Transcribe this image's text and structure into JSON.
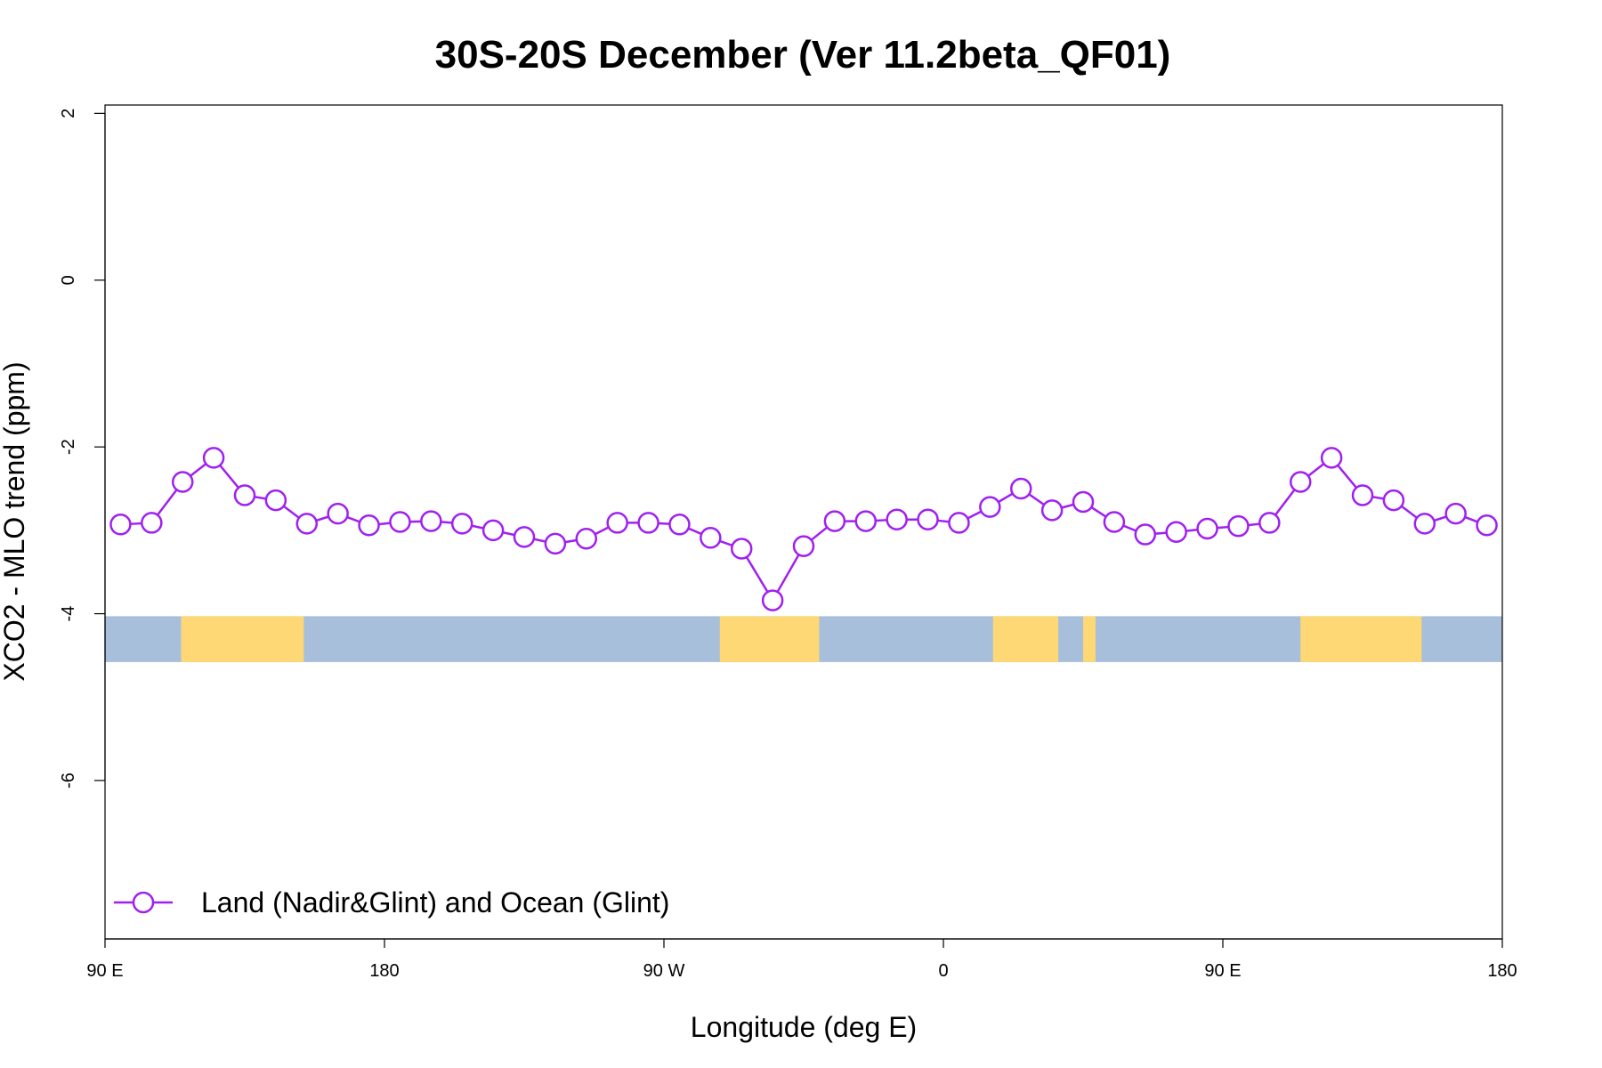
{
  "chart_data": {
    "type": "line",
    "title": "30S-20S December (Ver 11.2beta_QF01)",
    "xlabel": "Longitude (deg E)",
    "ylabel": "XCO2 - MLO trend (ppm)",
    "xlim": [
      90,
      540
    ],
    "ylim": [
      -7.9,
      2.1
    ],
    "x_ticks": [
      {
        "value": 90,
        "label": "90 E"
      },
      {
        "value": 180,
        "label": "180"
      },
      {
        "value": 270,
        "label": "90 W"
      },
      {
        "value": 360,
        "label": "0"
      },
      {
        "value": 450,
        "label": "90 E"
      },
      {
        "value": 540,
        "label": "180"
      }
    ],
    "y_ticks": [
      {
        "value": 2,
        "label": "2"
      },
      {
        "value": 0,
        "label": "0"
      },
      {
        "value": -2,
        "label": "-2"
      },
      {
        "value": -4,
        "label": "-4"
      },
      {
        "value": -6,
        "label": "-6"
      }
    ],
    "grid": false,
    "legend_position": "bottom-left",
    "series": [
      {
        "name": "Land (Nadir&Glint) and Ocean (Glint)",
        "color": "#a020f0",
        "marker": "open-circle",
        "x": [
          95,
          105,
          115,
          125,
          135,
          145,
          155,
          165,
          175,
          185,
          195,
          205,
          215,
          225,
          235,
          245,
          255,
          265,
          275,
          285,
          295,
          305,
          315,
          325,
          335,
          345,
          355,
          365,
          375,
          385,
          395,
          405,
          415,
          425,
          435,
          445,
          455,
          465,
          475,
          485,
          495,
          505,
          515,
          525,
          535
        ],
        "y": [
          -2.93,
          -2.91,
          -2.42,
          -2.13,
          -2.58,
          -2.64,
          -2.92,
          -2.8,
          -2.94,
          -2.9,
          -2.89,
          -2.92,
          -3.0,
          -3.08,
          -3.16,
          -3.1,
          -2.91,
          -2.91,
          -2.93,
          -3.09,
          -3.22,
          -3.84,
          -3.19,
          -2.89,
          -2.89,
          -2.87,
          -2.87,
          -2.91,
          -2.72,
          -2.5,
          -2.76,
          -2.66,
          -2.9,
          -3.05,
          -3.02,
          -2.98,
          -2.95,
          -2.91,
          -2.42,
          -2.13,
          -2.58,
          -2.64,
          -2.92,
          -2.8,
          -2.94
        ]
      }
    ],
    "map_strip": {
      "y_range": [
        -4.58,
        -4.03
      ],
      "ocean_color": "#a8bfdc",
      "land_color": "#fdd874",
      "land_segments": [
        [
          114.5,
          154
        ],
        [
          288,
          320
        ],
        [
          376,
          397
        ],
        [
          405,
          409
        ],
        [
          475,
          514
        ]
      ]
    }
  }
}
